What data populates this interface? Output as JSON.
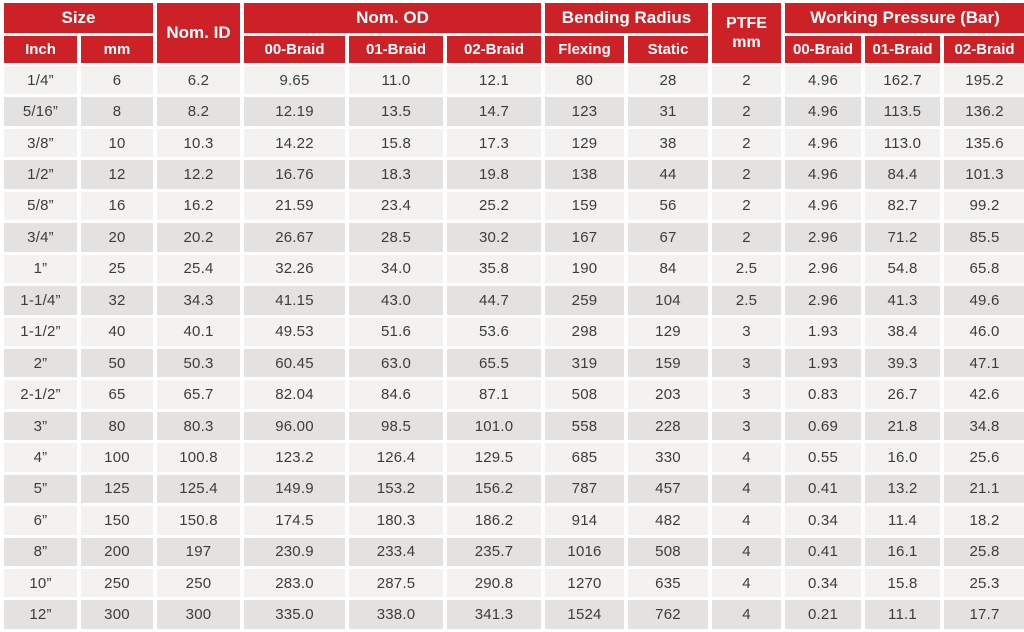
{
  "colors": {
    "header_red": "#CC2127",
    "header_text": "#FFFFFF",
    "row_light": "#F3F2F0",
    "row_dark": "#E4E2E0",
    "text_dark": "#3C3C3C"
  },
  "chart_data": {
    "type": "table",
    "header_groups": {
      "size": "Size",
      "nom_id": "Nom. ID",
      "nom_od": "Nom. OD",
      "bending_radius": "Bending Radius",
      "ptfe": "PTFE",
      "ptfe_unit": "mm",
      "working_pressure": "Working Pressure (Bar)"
    },
    "subheaders": [
      "Inch",
      "mm",
      "00-Braid",
      "01-Braid",
      "02-Braid",
      "Flexing",
      "Static",
      "00-Braid",
      "01-Braid",
      "02-Braid"
    ],
    "rows": [
      [
        "1/4”",
        "6",
        "6.2",
        "9.65",
        "11.0",
        "12.1",
        "80",
        "28",
        "2",
        "4.96",
        "162.7",
        "195.2"
      ],
      [
        "5/16”",
        "8",
        "8.2",
        "12.19",
        "13.5",
        "14.7",
        "123",
        "31",
        "2",
        "4.96",
        "113.5",
        "136.2"
      ],
      [
        "3/8”",
        "10",
        "10.3",
        "14.22",
        "15.8",
        "17.3",
        "129",
        "38",
        "2",
        "4.96",
        "113.0",
        "135.6"
      ],
      [
        "1/2”",
        "12",
        "12.2",
        "16.76",
        "18.3",
        "19.8",
        "138",
        "44",
        "2",
        "4.96",
        "84.4",
        "101.3"
      ],
      [
        "5/8”",
        "16",
        "16.2",
        "21.59",
        "23.4",
        "25.2",
        "159",
        "56",
        "2",
        "4.96",
        "82.7",
        "99.2"
      ],
      [
        "3/4”",
        "20",
        "20.2",
        "26.67",
        "28.5",
        "30.2",
        "167",
        "67",
        "2",
        "2.96",
        "71.2",
        "85.5"
      ],
      [
        "1”",
        "25",
        "25.4",
        "32.26",
        "34.0",
        "35.8",
        "190",
        "84",
        "2.5",
        "2.96",
        "54.8",
        "65.8"
      ],
      [
        "1-1/4”",
        "32",
        "34.3",
        "41.15",
        "43.0",
        "44.7",
        "259",
        "104",
        "2.5",
        "2.96",
        "41.3",
        "49.6"
      ],
      [
        "1-1/2”",
        "40",
        "40.1",
        "49.53",
        "51.6",
        "53.6",
        "298",
        "129",
        "3",
        "1.93",
        "38.4",
        "46.0"
      ],
      [
        "2”",
        "50",
        "50.3",
        "60.45",
        "63.0",
        "65.5",
        "319",
        "159",
        "3",
        "1.93",
        "39.3",
        "47.1"
      ],
      [
        "2-1/2”",
        "65",
        "65.7",
        "82.04",
        "84.6",
        "87.1",
        "508",
        "203",
        "3",
        "0.83",
        "26.7",
        "42.6"
      ],
      [
        "3”",
        "80",
        "80.3",
        "96.00",
        "98.5",
        "101.0",
        "558",
        "228",
        "3",
        "0.69",
        "21.8",
        "34.8"
      ],
      [
        "4”",
        "100",
        "100.8",
        "123.2",
        "126.4",
        "129.5",
        "685",
        "330",
        "4",
        "0.55",
        "16.0",
        "25.6"
      ],
      [
        "5”",
        "125",
        "125.4",
        "149.9",
        "153.2",
        "156.2",
        "787",
        "457",
        "4",
        "0.41",
        "13.2",
        "21.1"
      ],
      [
        "6”",
        "150",
        "150.8",
        "174.5",
        "180.3",
        "186.2",
        "914",
        "482",
        "4",
        "0.34",
        "11.4",
        "18.2"
      ],
      [
        "8”",
        "200",
        "197",
        "230.9",
        "233.4",
        "235.7",
        "1016",
        "508",
        "4",
        "0.41",
        "16.1",
        "25.8"
      ],
      [
        "10”",
        "250",
        "250",
        "283.0",
        "287.5",
        "290.8",
        "1270",
        "635",
        "4",
        "0.34",
        "15.8",
        "25.3"
      ],
      [
        "12”",
        "300",
        "300",
        "335.0",
        "338.0",
        "341.3",
        "1524",
        "762",
        "4",
        "0.21",
        "11.1",
        "17.7"
      ]
    ]
  }
}
